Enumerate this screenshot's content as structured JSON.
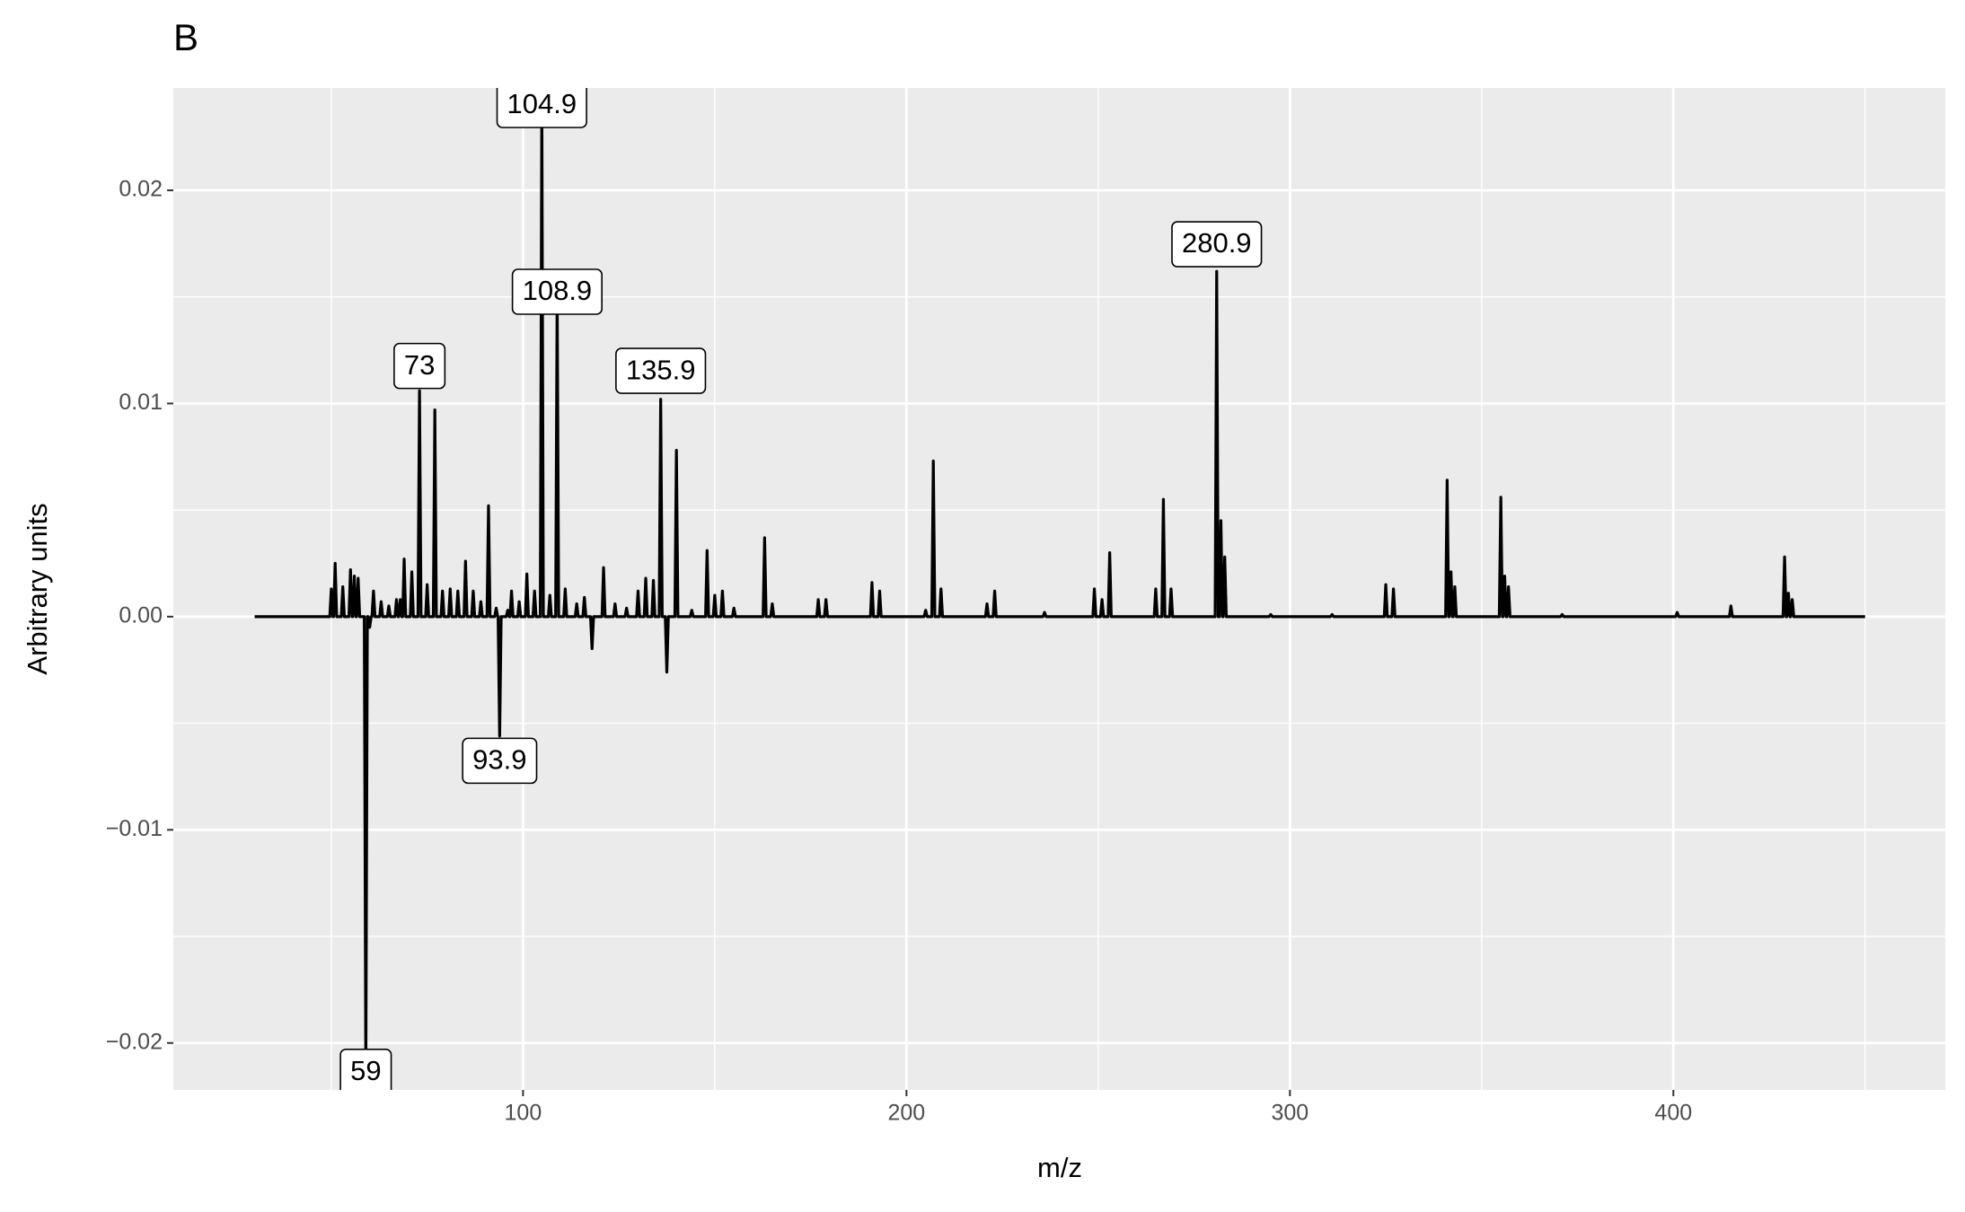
{
  "chart_data": {
    "type": "line",
    "title": "B",
    "x_label": "m/z",
    "y_label": "Arbitrary units",
    "xlim": [
      8.8,
      470.9
    ],
    "ylim": [
      -0.0222,
      0.0248
    ],
    "xticks": [
      100,
      200,
      300,
      400
    ],
    "yticks": [
      {
        "value": -0.02,
        "label": "−0.02"
      },
      {
        "value": -0.01,
        "label": "−0.01"
      },
      {
        "value": 0,
        "label": "0.00"
      },
      0.01,
      0.02
    ],
    "x_minor_ticks": [
      50,
      150,
      250,
      350,
      450
    ],
    "y_minor_ticks": [
      -0.015,
      -0.005,
      0.005,
      0.015
    ],
    "grid": true,
    "color": "#000000",
    "x": [
      30,
      49.6,
      50,
      50.4,
      50.6,
      51,
      51.4,
      52.6,
      53,
      53.4,
      54.6,
      55,
      55.4,
      55.6,
      56,
      56.4,
      56.6,
      57,
      57.4,
      58.6,
      59,
      59.4,
      59.6,
      60,
      60.4,
      60.6,
      61,
      61.4,
      62.6,
      63,
      63.4,
      64.6,
      65,
      65.4,
      66.6,
      67,
      67.4,
      67.6,
      68,
      68.4,
      68.6,
      69,
      69.4,
      70.6,
      71,
      71.4,
      72.6,
      73,
      73.4,
      74.6,
      75,
      75.4,
      76.6,
      77,
      77.4,
      78.6,
      79,
      79.4,
      80.6,
      81,
      81.4,
      82.6,
      83,
      83.4,
      84.6,
      85,
      85.4,
      86.6,
      87,
      87.4,
      88.6,
      89,
      89.4,
      90.6,
      91,
      91.4,
      92.6,
      93,
      93.4,
      93.5,
      93.9,
      94.3,
      95.6,
      96,
      96.4,
      96.6,
      97,
      97.4,
      98.6,
      99,
      99.4,
      100.6,
      101,
      101.4,
      102.6,
      103,
      103.4,
      104.5,
      104.9,
      105.3,
      106.6,
      107,
      107.4,
      108.5,
      108.9,
      109.3,
      110.6,
      111,
      111.4,
      113.6,
      114,
      114.4,
      115.6,
      116,
      116.4,
      117.6,
      118,
      118.4,
      120.6,
      121,
      121.4,
      123.6,
      124,
      124.4,
      126.6,
      127,
      127.4,
      129.6,
      130,
      130.4,
      131.6,
      132,
      132.4,
      133.6,
      134,
      134.4,
      135.5,
      135.9,
      136.3,
      137.1,
      137.5,
      137.9,
      139.6,
      140,
      140.4,
      143.6,
      144,
      144.4,
      147.6,
      148,
      148.4,
      149.6,
      150,
      150.4,
      151.6,
      152,
      152.4,
      154.6,
      155,
      155.4,
      162.6,
      163,
      163.4,
      164.6,
      165,
      165.4,
      176.6,
      177,
      177.4,
      178.6,
      179,
      179.4,
      190.6,
      191,
      191.4,
      192.6,
      193,
      193.4,
      204.6,
      205,
      205.4,
      206.6,
      207,
      207.4,
      208.6,
      209,
      209.4,
      220.6,
      221,
      221.4,
      222.6,
      223,
      223.4,
      235.6,
      236,
      236.4,
      248.6,
      249,
      249.4,
      250.6,
      251,
      251.4,
      252.6,
      253,
      253.4,
      264.6,
      265,
      265.4,
      266.6,
      267,
      267.4,
      268.6,
      269,
      269.4,
      280.5,
      280.9,
      281.3,
      281.6,
      282,
      282.4,
      282.6,
      283,
      283.4,
      294.6,
      295,
      295.4,
      310.6,
      311,
      311.4,
      324.6,
      325,
      325.4,
      326.6,
      327,
      327.4,
      340.6,
      341,
      341.4,
      341.6,
      342,
      342.4,
      342.6,
      343,
      343.4,
      354.6,
      355,
      355.4,
      355.6,
      356,
      356.4,
      356.6,
      357,
      357.4,
      370.6,
      371,
      371.4,
      400.6,
      401,
      401.4,
      414.6,
      415,
      415.4,
      428.6,
      429,
      429.4,
      429.6,
      430,
      430.4,
      430.6,
      431,
      431.4,
      450
    ],
    "values": [
      0,
      0,
      0.0013,
      0,
      0,
      0.0025,
      0,
      0,
      0.0014,
      0,
      0,
      0.0022,
      0,
      0,
      0.0019,
      0,
      0,
      0.0018,
      0,
      0,
      -0.0215,
      0,
      0,
      -0.0005,
      0,
      0,
      0.0012,
      0,
      0,
      0.0007,
      0,
      0,
      0.0005,
      0,
      0,
      0.0008,
      0,
      0,
      0.0008,
      0,
      0,
      0.0027,
      0,
      0,
      0.0021,
      0,
      0,
      0.0106,
      0,
      0,
      0.0015,
      0,
      0,
      0.0097,
      0,
      0,
      0.0012,
      0,
      0,
      0.0013,
      0,
      0,
      0.0012,
      0,
      0,
      0.0026,
      0,
      0,
      0.0012,
      0,
      0,
      0.0007,
      0,
      0,
      0.0052,
      0,
      0,
      0.0004,
      0,
      0,
      -0.0056,
      0,
      0,
      0.0003,
      0,
      0,
      0.0012,
      0,
      0,
      0.0007,
      0,
      0,
      0.002,
      0,
      0,
      0.0012,
      0,
      0,
      0.0243,
      0,
      0,
      0.001,
      0,
      0,
      0.0152,
      0,
      0,
      0.0013,
      0,
      0,
      0.0006,
      0,
      0,
      0.0009,
      0,
      0,
      -0.0015,
      0,
      0,
      0.0023,
      0,
      0,
      0.0006,
      0,
      0,
      0.0004,
      0,
      0,
      0.0012,
      0,
      0,
      0.0018,
      0,
      0,
      0.0017,
      0,
      0,
      0.0102,
      0,
      0,
      -0.0026,
      0,
      0,
      0.0078,
      0,
      0,
      0.0003,
      0,
      0,
      0.0031,
      0,
      0,
      0.001,
      0,
      0,
      0.0012,
      0,
      0,
      0.0004,
      0,
      0,
      0.0037,
      0,
      0,
      0.0006,
      0,
      0,
      0.0008,
      0,
      0,
      0.0008,
      0,
      0,
      0.0016,
      0,
      0,
      0.0012,
      0,
      0,
      0.0003,
      0,
      0,
      0.0073,
      0,
      0,
      0.0013,
      0,
      0,
      0.0006,
      0,
      0,
      0.0012,
      0,
      0,
      0.0002,
      0,
      0,
      0.0013,
      0,
      0,
      0.0008,
      0,
      0,
      0.003,
      0,
      0,
      0.0013,
      0,
      0,
      0.0055,
      0,
      0,
      0.0013,
      0,
      0,
      0.0162,
      0,
      0,
      0.0045,
      0,
      0,
      0.0028,
      0,
      0,
      0.0001,
      0,
      0,
      0.0001,
      0,
      0,
      0.0015,
      0,
      0,
      0.0013,
      0,
      0,
      0.0064,
      0,
      0,
      0.0021,
      0,
      0,
      0.0014,
      0,
      0,
      0.0056,
      0,
      0,
      0.0019,
      0,
      0,
      0.0014,
      0,
      0,
      0.0001,
      0,
      0,
      0.0002,
      0,
      0,
      0.0005,
      0,
      0,
      0.0028,
      0,
      0,
      0.0011,
      0,
      0,
      0.0008,
      0,
      0
    ],
    "labels": [
      {
        "x": 104.9,
        "y": 0.024
      },
      {
        "x": 108.9,
        "y": 0.01524
      },
      {
        "x": 73,
        "y": 0.01176
      },
      {
        "x": 135.9,
        "y": 0.01153
      },
      {
        "x": 280.9,
        "y": 0.01747
      },
      {
        "x": 93.9,
        "y": -0.00676
      },
      {
        "x": 59,
        "y": -0.02135
      }
    ]
  }
}
